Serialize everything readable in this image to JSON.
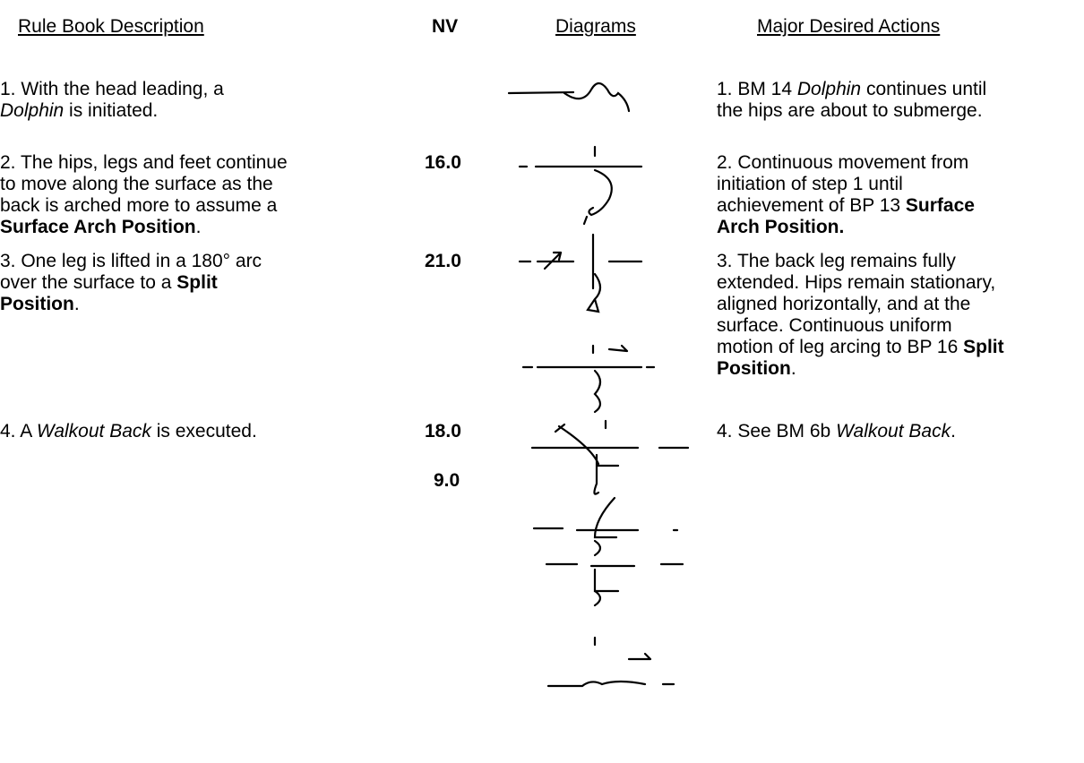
{
  "header": {
    "description": "Rule Book Description",
    "nv": "NV",
    "diagrams": "Diagrams",
    "actions": "Major Desired Actions"
  },
  "rows": [
    {
      "description": [
        [
          {
            "text": "1.  With the head leading, a"
          }
        ],
        [
          {
            "text": "Dolphin",
            "italic": true
          },
          {
            "text": " is initiated."
          }
        ]
      ],
      "actions": [
        [
          {
            "text": "1. BM 14 "
          },
          {
            "text": "Dolphin",
            "italic": true
          },
          {
            "text": " continues until"
          }
        ],
        [
          {
            "text": "the hips are about to submerge."
          }
        ]
      ]
    },
    {
      "description": [
        [
          {
            "text": "2.  The hips, legs and feet continue"
          }
        ],
        [
          {
            "text": "to move along the surface as the"
          }
        ],
        [
          {
            "text": "back is arched more to assume a"
          }
        ],
        [
          {
            "text": "Surface Arch Position",
            "bold": true
          },
          {
            "text": "."
          }
        ]
      ],
      "nv": [
        "16.0"
      ],
      "actions": [
        [
          {
            "text": "2.  Continuous movement from"
          }
        ],
        [
          {
            "text": "initiation of step 1 until"
          }
        ],
        [
          {
            "text": "achievement of BP 13 "
          },
          {
            "text": "Surface",
            "bold": true
          }
        ],
        [
          {
            "text": "Arch Position.",
            "bold": true
          }
        ]
      ]
    },
    {
      "description": [
        [
          {
            "text": "3.  One leg is lifted in a 180° arc"
          }
        ],
        [
          {
            "text": "over the surface to a "
          },
          {
            "text": "Split",
            "bold": true
          }
        ],
        [
          {
            "text": "Position",
            "bold": true
          },
          {
            "text": "."
          }
        ]
      ],
      "nv": [
        "21.0"
      ],
      "actions": [
        [
          {
            "text": "3.  The back leg remains fully"
          }
        ],
        [
          {
            "text": "extended. Hips remain stationary,"
          }
        ],
        [
          {
            "text": "aligned horizontally, and at the"
          }
        ],
        [
          {
            "text": "surface.  Continuous uniform"
          }
        ],
        [
          {
            "text": "motion of leg arcing to BP 16 "
          },
          {
            "text": "Split",
            "bold": true
          }
        ],
        [
          {
            "text": "Position",
            "bold": true
          },
          {
            "text": "."
          }
        ]
      ]
    },
    {
      "description": [
        [
          {
            "text": "4.  A "
          },
          {
            "text": "Walkout Back",
            "italic": true
          },
          {
            "text": " is executed."
          }
        ]
      ],
      "nv": [
        "18.0",
        "9.0"
      ],
      "actions": [
        [
          {
            "text": "4.  See BM 6b "
          },
          {
            "text": "Walkout Back",
            "italic": true
          },
          {
            "text": "."
          }
        ]
      ]
    }
  ]
}
